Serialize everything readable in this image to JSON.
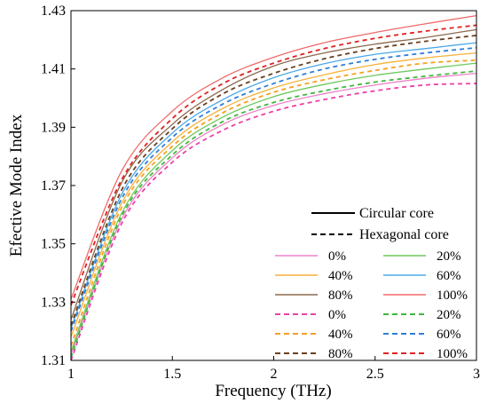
{
  "chart_data": {
    "type": "line",
    "title": "",
    "xlabel": "Frequency (THz)",
    "ylabel": "Efective Mode Index",
    "xlim": [
      1,
      3
    ],
    "ylim": [
      1.31,
      1.43
    ],
    "x_ticks": [
      1,
      1.5,
      2,
      2.5,
      3
    ],
    "x_tick_labels": [
      "1",
      "1.5",
      "2",
      "2.5",
      "3"
    ],
    "y_ticks": [
      1.31,
      1.33,
      1.35,
      1.37,
      1.39,
      1.41,
      1.43
    ],
    "y_tick_labels": [
      "1.31",
      "1.33",
      "1.35",
      "1.37",
      "1.39",
      "1.41",
      "1.43"
    ],
    "grid": false,
    "legend_placement": "bottom-right",
    "x": [
      1.0,
      1.25,
      1.5,
      1.75,
      2.0,
      2.25,
      2.5,
      2.75,
      3.0
    ],
    "line_style_legend": [
      {
        "label": "Circular core",
        "dash": "solid"
      },
      {
        "label": "Hexagonal core",
        "dash": "dashed"
      }
    ],
    "series": [
      {
        "name": "0%",
        "core": "circular",
        "dash": "solid",
        "color": "#ee82c8",
        "values": [
          1.312,
          1.3585,
          1.3795,
          1.391,
          1.3975,
          1.4015,
          1.4045,
          1.4068,
          1.4085
        ]
      },
      {
        "name": "20%",
        "core": "circular",
        "dash": "solid",
        "color": "#70c860",
        "values": [
          1.313,
          1.3605,
          1.382,
          1.3935,
          1.4005,
          1.4047,
          1.4078,
          1.41,
          1.412
        ]
      },
      {
        "name": "40%",
        "core": "circular",
        "dash": "solid",
        "color": "#f5b23a",
        "values": [
          1.318,
          1.364,
          1.385,
          1.3965,
          1.4035,
          1.408,
          1.4115,
          1.4138,
          1.4155
        ]
      },
      {
        "name": "60%",
        "core": "circular",
        "dash": "solid",
        "color": "#4aa8e8",
        "values": [
          1.321,
          1.367,
          1.388,
          1.3995,
          1.407,
          1.4118,
          1.415,
          1.417,
          1.419
        ]
      },
      {
        "name": "80%",
        "core": "circular",
        "dash": "solid",
        "color": "#8b6a4f",
        "values": [
          1.324,
          1.371,
          1.391,
          1.403,
          1.411,
          1.4155,
          1.4185,
          1.4208,
          1.4235
        ]
      },
      {
        "name": "100%",
        "core": "circular",
        "dash": "solid",
        "color": "#f06a6a",
        "values": [
          1.331,
          1.375,
          1.3955,
          1.407,
          1.414,
          1.419,
          1.4225,
          1.4255,
          1.4283
        ]
      },
      {
        "name": "0%",
        "core": "hexagonal",
        "dash": "dashed",
        "color": "#ee3fa8",
        "values": [
          1.31,
          1.357,
          1.378,
          1.389,
          1.3955,
          1.3995,
          1.4025,
          1.4045,
          1.405
        ]
      },
      {
        "name": "20%",
        "core": "hexagonal",
        "dash": "dashed",
        "color": "#3fb83f",
        "values": [
          1.311,
          1.3595,
          1.3805,
          1.392,
          1.3985,
          1.4025,
          1.4055,
          1.4075,
          1.4093
        ]
      },
      {
        "name": "40%",
        "core": "hexagonal",
        "dash": "dashed",
        "color": "#f5a020",
        "values": [
          1.315,
          1.3625,
          1.3835,
          1.395,
          1.402,
          1.4063,
          1.4095,
          1.412,
          1.413
        ]
      },
      {
        "name": "60%",
        "core": "hexagonal",
        "dash": "dashed",
        "color": "#2f7fd8",
        "values": [
          1.32,
          1.3655,
          1.3865,
          1.398,
          1.405,
          1.41,
          1.4133,
          1.4155,
          1.4173
        ]
      },
      {
        "name": "80%",
        "core": "hexagonal",
        "dash": "dashed",
        "color": "#6b3f1f",
        "values": [
          1.322,
          1.3685,
          1.3895,
          1.4015,
          1.4085,
          1.4135,
          1.417,
          1.4195,
          1.4215
        ]
      },
      {
        "name": "100%",
        "core": "hexagonal",
        "dash": "dashed",
        "color": "#e02020",
        "values": [
          1.329,
          1.372,
          1.393,
          1.405,
          1.412,
          1.417,
          1.4205,
          1.423,
          1.425
        ]
      }
    ],
    "legend_entries": [
      {
        "label": "0%",
        "series_index": 0
      },
      {
        "label": "20%",
        "series_index": 1
      },
      {
        "label": "40%",
        "series_index": 2
      },
      {
        "label": "60%",
        "series_index": 3
      },
      {
        "label": "80%",
        "series_index": 4
      },
      {
        "label": "100%",
        "series_index": 5
      },
      {
        "label": "0%",
        "series_index": 6
      },
      {
        "label": "20%",
        "series_index": 7
      },
      {
        "label": "40%",
        "series_index": 8
      },
      {
        "label": "60%",
        "series_index": 9
      },
      {
        "label": "80%",
        "series_index": 10
      },
      {
        "label": "100%",
        "series_index": 11
      }
    ]
  }
}
